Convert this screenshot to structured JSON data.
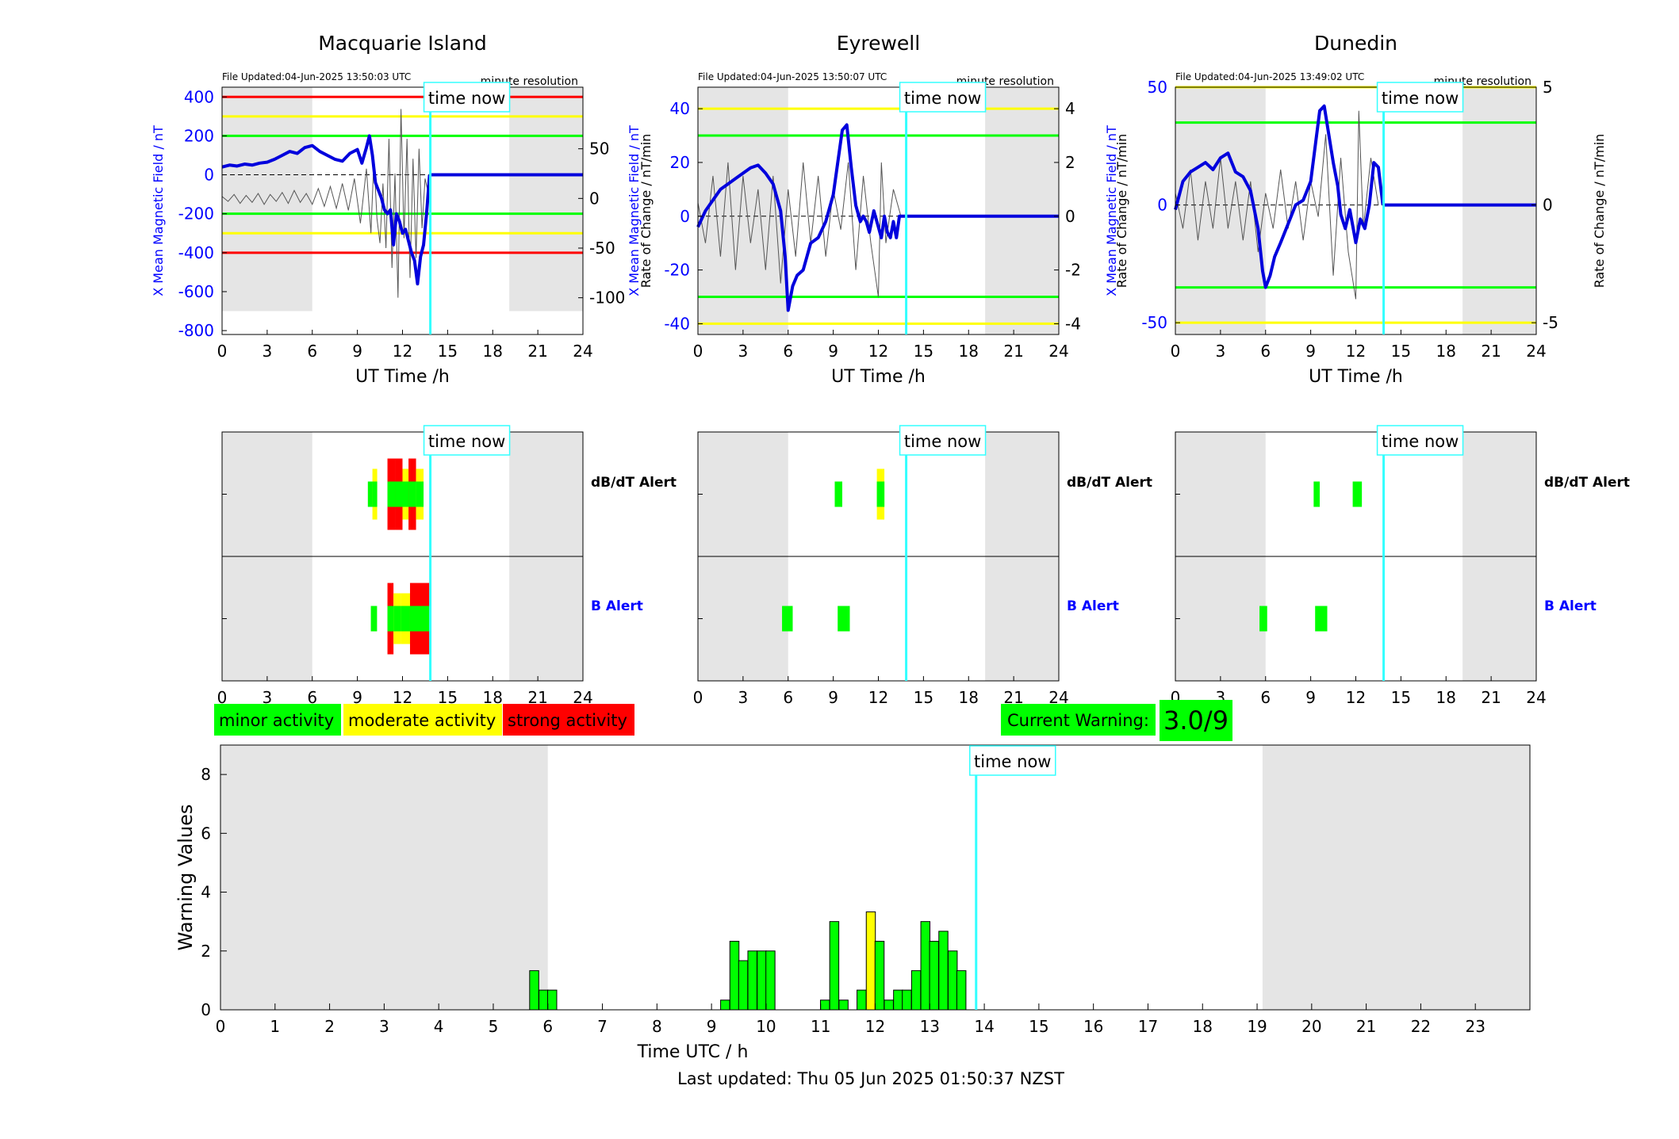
{
  "time_now_label": "time now",
  "time_now_hour": 13.85,
  "stations": [
    {
      "title": "Macquarie Island",
      "file_updated": "File Updated:04-Jun-2025 13:50:03 UTC",
      "resolution": "minute resolution",
      "ylabel_left": "X Mean Magnetic Field / nT",
      "ylabel_right": "Rate of Change / nT/min",
      "xlabel": "UT Time /h",
      "left_ylim": [
        -820,
        450
      ],
      "left_ticks": [
        -800,
        -600,
        -400,
        -200,
        0,
        200,
        400
      ],
      "right_ylim": [
        -137,
        112
      ],
      "right_ticks": [
        -100,
        -50,
        0,
        50
      ],
      "thresholds": [
        {
          "value": 400,
          "color": "#ff0000"
        },
        {
          "value": 300,
          "color": "#ffff00"
        },
        {
          "value": 200,
          "color": "#00ff00"
        },
        {
          "value": -200,
          "color": "#00ff00"
        },
        {
          "value": -300,
          "color": "#ffff00"
        },
        {
          "value": -400,
          "color": "#ff0000"
        }
      ],
      "night_shading": [
        [
          0,
          6,
          -700
        ],
        [
          19.1,
          24,
          -700
        ]
      ],
      "field_series": {
        "x": [
          0,
          0.5,
          1,
          1.5,
          2,
          2.5,
          3,
          3.5,
          4,
          4.5,
          5,
          5.5,
          6,
          6.5,
          7,
          7.5,
          8,
          8.5,
          9,
          9.3,
          9.6,
          9.8,
          10,
          10.2,
          10.4,
          10.6,
          10.8,
          11,
          11.2,
          11.4,
          11.6,
          11.8,
          12,
          12.2,
          12.4,
          12.6,
          12.8,
          13,
          13.2,
          13.4,
          13.6,
          13.8
        ],
        "y": [
          40,
          50,
          45,
          55,
          50,
          60,
          65,
          80,
          100,
          120,
          110,
          140,
          150,
          120,
          100,
          80,
          70,
          110,
          130,
          60,
          140,
          200,
          100,
          -40,
          -80,
          -120,
          -180,
          -200,
          -180,
          -360,
          -200,
          -240,
          -300,
          -280,
          -340,
          -400,
          -440,
          -560,
          -420,
          -360,
          -200,
          0
        ]
      },
      "rate_series": {
        "x": [
          0,
          0.4,
          0.8,
          1.2,
          1.6,
          2,
          2.4,
          2.8,
          3.2,
          3.6,
          4,
          4.4,
          4.8,
          5.2,
          5.6,
          6,
          6.4,
          6.8,
          7.2,
          7.6,
          8,
          8.4,
          8.8,
          9.2,
          9.6,
          9.9,
          10.1,
          10.3,
          10.5,
          10.7,
          10.9,
          11.1,
          11.3,
          11.5,
          11.7,
          11.9,
          12.1,
          12.3,
          12.5,
          12.7,
          12.9,
          13.1,
          13.3,
          13.5,
          13.8
        ],
        "y": [
          2,
          -3,
          4,
          -5,
          3,
          -4,
          5,
          -6,
          4,
          -3,
          6,
          -5,
          8,
          -4,
          5,
          -6,
          10,
          -8,
          12,
          -10,
          15,
          -12,
          20,
          -25,
          30,
          -35,
          40,
          -20,
          -45,
          15,
          -50,
          60,
          -70,
          25,
          -100,
          90,
          -40,
          60,
          -80,
          40,
          -60,
          50,
          -30,
          20,
          0
        ]
      },
      "dbdt_alert": [
        {
          "x0": 9.7,
          "x1": 10.3,
          "levels": [
            "minor"
          ]
        },
        {
          "x0": 10.0,
          "x1": 10.3,
          "levels": [
            "moderate"
          ]
        },
        {
          "x0": 11.0,
          "x1": 11.5,
          "levels": [
            "strong"
          ]
        },
        {
          "x0": 11.5,
          "x1": 12.0,
          "levels": [
            "strong"
          ]
        },
        {
          "x0": 12.0,
          "x1": 12.4,
          "levels": [
            "moderate"
          ]
        },
        {
          "x0": 12.4,
          "x1": 12.9,
          "levels": [
            "strong"
          ]
        },
        {
          "x0": 12.9,
          "x1": 13.4,
          "levels": [
            "moderate"
          ]
        }
      ],
      "b_alert": [
        {
          "x0": 9.9,
          "x1": 10.3,
          "levels": [
            "minor"
          ]
        },
        {
          "x0": 11.0,
          "x1": 11.4,
          "levels": [
            "strong"
          ]
        },
        {
          "x0": 11.4,
          "x1": 11.9,
          "levels": [
            "moderate"
          ]
        },
        {
          "x0": 11.9,
          "x1": 12.5,
          "levels": [
            "moderate"
          ]
        },
        {
          "x0": 12.5,
          "x1": 13.8,
          "levels": [
            "strong"
          ]
        }
      ]
    },
    {
      "title": "Eyrewell",
      "file_updated": "File Updated:04-Jun-2025 13:50:07 UTC",
      "resolution": "minute resolution",
      "ylabel_left": "X Mean Magnetic Field / nT",
      "ylabel_right": "Rate of Change / nT/min",
      "xlabel": "UT Time /h",
      "left_ylim": [
        -44,
        48
      ],
      "left_ticks": [
        -40,
        -20,
        0,
        20,
        40
      ],
      "right_ylim": [
        -4.4,
        4.8
      ],
      "right_ticks": [
        -4,
        -2,
        0,
        2,
        4
      ],
      "thresholds": [
        {
          "value": 40,
          "color": "#ffff00"
        },
        {
          "value": 30,
          "color": "#00ff00"
        },
        {
          "value": -30,
          "color": "#00ff00"
        },
        {
          "value": -40,
          "color": "#ffff00"
        }
      ],
      "night_shading": [
        [
          0,
          6,
          -44
        ],
        [
          19.1,
          24,
          -44
        ]
      ],
      "field_series": {
        "x": [
          0,
          0.5,
          1,
          1.5,
          2,
          2.5,
          3,
          3.5,
          4,
          4.5,
          5,
          5.5,
          5.8,
          6,
          6.3,
          6.6,
          7,
          7.5,
          8,
          8.5,
          9,
          9.3,
          9.6,
          9.9,
          10.2,
          10.5,
          10.8,
          11,
          11.2,
          11.4,
          11.7,
          12,
          12.2,
          12.4,
          12.6,
          12.8,
          13,
          13.2,
          13.4,
          13.8
        ],
        "y": [
          -4,
          2,
          6,
          10,
          12,
          14,
          16,
          18,
          19,
          16,
          12,
          2,
          -15,
          -35,
          -26,
          -22,
          -20,
          -10,
          -8,
          -2,
          8,
          20,
          32,
          34,
          18,
          4,
          -2,
          0,
          -2,
          -6,
          2,
          -4,
          -8,
          0,
          -6,
          -8,
          -2,
          -8,
          0,
          0
        ]
      },
      "rate_series": {
        "x": [
          0,
          0.5,
          1,
          1.5,
          2,
          2.5,
          3,
          3.5,
          4,
          4.5,
          5,
          5.5,
          6,
          6.5,
          7,
          7.5,
          8,
          8.5,
          9,
          9.5,
          10,
          10.5,
          11,
          11.5,
          12,
          12.2,
          12.5,
          13,
          13.5
        ],
        "y": [
          0.5,
          -1,
          1.5,
          -1.5,
          2,
          -2,
          1.5,
          -1,
          1,
          -2,
          1.5,
          -2.5,
          1,
          -1.5,
          2,
          -1,
          1.5,
          -1.5,
          1,
          -0.5,
          2,
          -2,
          1.5,
          -1,
          -3,
          2,
          -1,
          1,
          0
        ]
      },
      "dbdt_alert": [
        {
          "x0": 9.1,
          "x1": 9.6,
          "levels": [
            "minor"
          ]
        },
        {
          "x0": 11.9,
          "x1": 12.4,
          "levels": [
            "minor",
            "moderate"
          ]
        }
      ],
      "b_alert": [
        {
          "x0": 5.6,
          "x1": 6.3,
          "levels": [
            "minor"
          ]
        },
        {
          "x0": 9.3,
          "x1": 10.1,
          "levels": [
            "minor"
          ]
        }
      ]
    },
    {
      "title": "Dunedin",
      "file_updated": "File Updated:04-Jun-2025 13:49:02 UTC",
      "resolution": "minute resolution",
      "ylabel_left": "X Mean Magnetic Field / nT",
      "ylabel_right": "Rate of Change / nT/min",
      "xlabel": "UT Time /h",
      "left_ylim": [
        -55,
        50
      ],
      "left_ticks": [
        -50,
        0,
        50
      ],
      "right_ylim": [
        -5.5,
        5
      ],
      "right_ticks": [
        -5,
        0,
        5
      ],
      "thresholds": [
        {
          "value": 50,
          "color": "#ffff00"
        },
        {
          "value": 35,
          "color": "#00ff00"
        },
        {
          "value": -35,
          "color": "#00ff00"
        },
        {
          "value": -50,
          "color": "#ffff00"
        }
      ],
      "night_shading": [
        [
          0,
          6,
          -55
        ],
        [
          19.1,
          24,
          -55
        ]
      ],
      "field_series": {
        "x": [
          0,
          0.5,
          1,
          1.5,
          2,
          2.5,
          3,
          3.5,
          4,
          4.5,
          5,
          5.5,
          5.8,
          6,
          6.3,
          6.6,
          7,
          7.5,
          8,
          8.5,
          9,
          9.3,
          9.6,
          9.9,
          10.2,
          10.5,
          10.8,
          11,
          11.3,
          11.6,
          12,
          12.3,
          12.6,
          12.9,
          13.2,
          13.5,
          13.8
        ],
        "y": [
          -2,
          10,
          14,
          16,
          18,
          15,
          20,
          22,
          14,
          12,
          6,
          -10,
          -28,
          -35,
          -30,
          -22,
          -16,
          -8,
          0,
          2,
          10,
          25,
          40,
          42,
          30,
          18,
          8,
          -4,
          -10,
          -2,
          -16,
          -6,
          -10,
          0,
          18,
          16,
          0
        ]
      },
      "rate_series": {
        "x": [
          0,
          0.5,
          1,
          1.5,
          2,
          2.5,
          3,
          3.5,
          4,
          4.5,
          5,
          5.5,
          6,
          6.5,
          7,
          7.5,
          8,
          8.5,
          9,
          9.5,
          10,
          10.5,
          11,
          11.5,
          12,
          12.2,
          12.5,
          13,
          13.5
        ],
        "y": [
          0.5,
          -1,
          1.5,
          -1.5,
          1,
          -1,
          2,
          -1,
          1,
          -1.5,
          1,
          -2,
          0.5,
          -1,
          1.5,
          -1,
          1,
          -1.5,
          1,
          -0.5,
          3,
          -3,
          2,
          -2,
          -4,
          4,
          -1,
          2,
          0
        ]
      },
      "dbdt_alert": [
        {
          "x0": 9.2,
          "x1": 9.6,
          "levels": [
            "minor"
          ]
        },
        {
          "x0": 11.8,
          "x1": 12.4,
          "levels": [
            "minor"
          ]
        }
      ],
      "b_alert": [
        {
          "x0": 5.6,
          "x1": 6.1,
          "levels": [
            "minor"
          ]
        },
        {
          "x0": 9.3,
          "x1": 10.1,
          "levels": [
            "minor"
          ]
        }
      ]
    }
  ],
  "alert_labels": {
    "dbdt": "dB/dT Alert",
    "b": "B Alert"
  },
  "legend": {
    "minor": {
      "label": "minor activity",
      "color": "#00ff00"
    },
    "moderate": {
      "label": "moderate activity",
      "color": "#ffff00"
    },
    "strong": {
      "label": "strong activity",
      "color": "#ff0000"
    }
  },
  "current_warning": {
    "label": "Current Warning:",
    "value": "3.0/9"
  },
  "x_ticks_station": [
    0,
    3,
    6,
    9,
    12,
    15,
    18,
    21,
    24
  ],
  "chart_data": {
    "type": "bar",
    "title": "",
    "xlabel": "Time UTC / h",
    "ylabel": "Warning Values",
    "xlim": [
      0,
      24
    ],
    "ylim": [
      0,
      9
    ],
    "x_ticks": [
      0,
      1,
      2,
      3,
      4,
      5,
      6,
      7,
      8,
      9,
      10,
      11,
      12,
      13,
      14,
      15,
      16,
      17,
      18,
      19,
      20,
      21,
      22,
      23
    ],
    "y_ticks": [
      0,
      2,
      4,
      6,
      8
    ],
    "night_shading": [
      [
        0,
        6
      ],
      [
        19.1,
        24
      ]
    ],
    "bars": [
      {
        "x": 5.75,
        "value": 1.33,
        "level": "minor"
      },
      {
        "x": 5.92,
        "value": 0.67,
        "level": "minor"
      },
      {
        "x": 6.08,
        "value": 0.67,
        "level": "minor"
      },
      {
        "x": 9.25,
        "value": 0.33,
        "level": "minor"
      },
      {
        "x": 9.42,
        "value": 2.33,
        "level": "minor"
      },
      {
        "x": 9.58,
        "value": 1.67,
        "level": "minor"
      },
      {
        "x": 9.75,
        "value": 2.0,
        "level": "minor"
      },
      {
        "x": 9.92,
        "value": 2.0,
        "level": "minor"
      },
      {
        "x": 10.08,
        "value": 2.0,
        "level": "minor"
      },
      {
        "x": 11.08,
        "value": 0.33,
        "level": "minor"
      },
      {
        "x": 11.25,
        "value": 3.0,
        "level": "minor"
      },
      {
        "x": 11.42,
        "value": 0.33,
        "level": "minor"
      },
      {
        "x": 11.75,
        "value": 0.67,
        "level": "minor"
      },
      {
        "x": 11.92,
        "value": 3.33,
        "level": "moderate"
      },
      {
        "x": 12.08,
        "value": 2.33,
        "level": "minor"
      },
      {
        "x": 12.25,
        "value": 0.33,
        "level": "minor"
      },
      {
        "x": 12.42,
        "value": 0.67,
        "level": "minor"
      },
      {
        "x": 12.58,
        "value": 0.67,
        "level": "minor"
      },
      {
        "x": 12.75,
        "value": 1.33,
        "level": "minor"
      },
      {
        "x": 12.92,
        "value": 3.0,
        "level": "minor"
      },
      {
        "x": 13.08,
        "value": 2.33,
        "level": "minor"
      },
      {
        "x": 13.25,
        "value": 2.67,
        "level": "minor"
      },
      {
        "x": 13.42,
        "value": 2.0,
        "level": "minor"
      },
      {
        "x": 13.58,
        "value": 1.33,
        "level": "minor"
      }
    ],
    "time_now": 13.85
  },
  "last_updated": "Last updated: Thu 05 Jun 2025 01:50:37 NZST",
  "colors": {
    "field_line": "#0000dd",
    "rate_line": "#555555",
    "time_now_line": "#33ffff",
    "night_shade": "#e5e5e5",
    "axis_blue": "#0000ff"
  }
}
